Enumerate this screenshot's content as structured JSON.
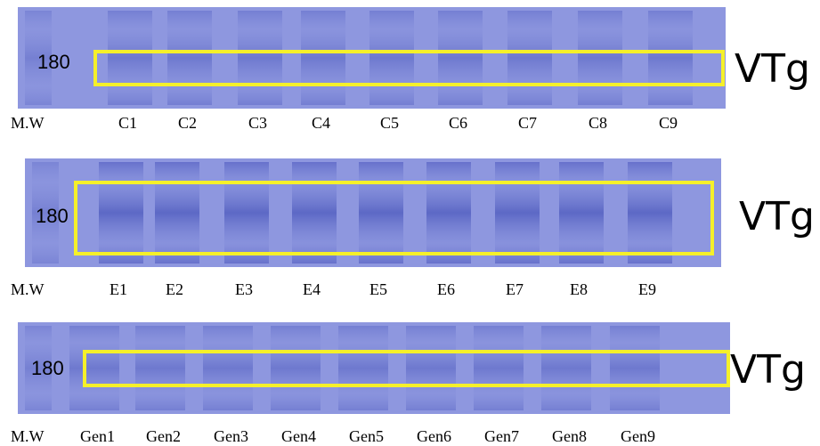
{
  "panels": [
    {
      "marker": "180",
      "protein": "VTg",
      "lanes": [
        "M.W",
        "C1",
        "C2",
        "C3",
        "C4",
        "C5",
        "C6",
        "C7",
        "C8",
        "C9"
      ]
    },
    {
      "marker": "180",
      "protein": "VTg",
      "lanes": [
        "M.W",
        "E1",
        "E2",
        "E3",
        "E4",
        "E5",
        "E6",
        "E7",
        "E8",
        "E9"
      ]
    },
    {
      "marker": "180",
      "protein": "VTg",
      "lanes": [
        "M.W",
        "Gen1",
        "Gen2",
        "Gen3",
        "Gen4",
        "Gen5",
        "Gen6",
        "Gen7",
        "Gen8",
        "Gen9"
      ]
    }
  ]
}
